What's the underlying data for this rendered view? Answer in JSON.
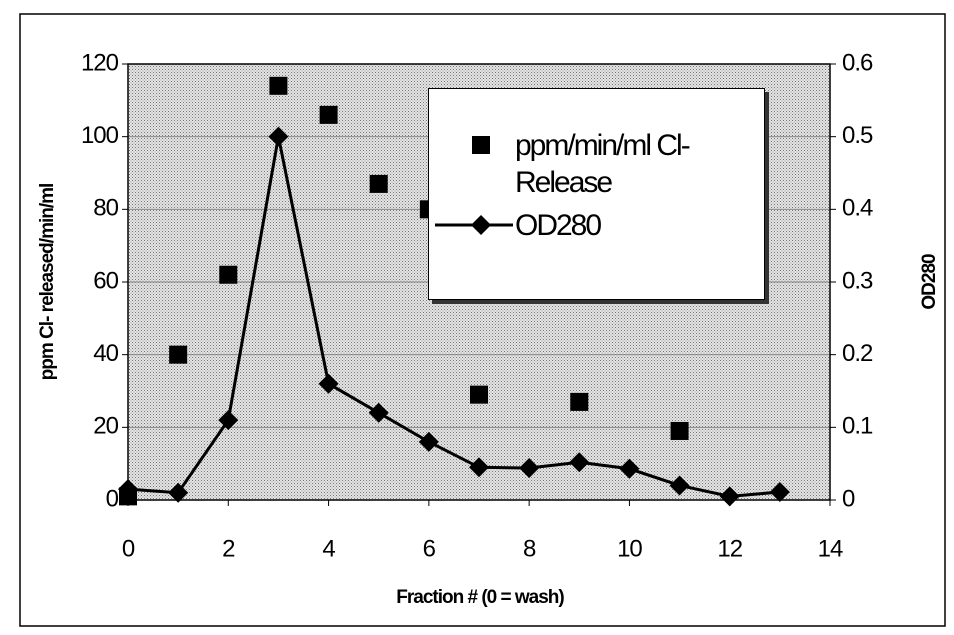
{
  "chart_data": {
    "type": "scatter",
    "x_label": "Fraction # (0 = wash)",
    "y_label": "ppm Cl- released/min/ml",
    "y2_label": "OD280",
    "xlim": [
      0,
      14
    ],
    "xticks": [
      0,
      2,
      4,
      6,
      8,
      10,
      12,
      14
    ],
    "ylim": [
      0,
      120
    ],
    "yticks": [
      0,
      20,
      40,
      60,
      80,
      100,
      120
    ],
    "y2lim": [
      0,
      0.6
    ],
    "y2ticks": [
      0,
      0.1,
      0.2,
      0.3,
      0.4,
      0.5,
      0.6
    ],
    "grid": true,
    "legend": "upper right",
    "series": [
      {
        "name": "ppm/min/ml Cl- Release",
        "color": "#000000",
        "marker": "square",
        "line": false,
        "x": [
          0,
          1,
          2,
          3,
          4,
          5,
          6,
          7,
          9,
          11
        ],
        "values": [
          1,
          40,
          62,
          114,
          106,
          87,
          80,
          29,
          27,
          19
        ]
      },
      {
        "name": "OD280",
        "color": "#000000",
        "marker": "diamond",
        "line": true,
        "axis": "y2",
        "x": [
          0,
          1,
          2,
          3,
          4,
          5,
          6,
          7,
          8,
          9,
          10,
          11,
          12,
          13
        ],
        "values": [
          0.015,
          0.01,
          0.11,
          0.5,
          0.16,
          0.12,
          0.08,
          0.045,
          0.044,
          0.052,
          0.043,
          0.02,
          0.005,
          0.011
        ]
      }
    ]
  }
}
